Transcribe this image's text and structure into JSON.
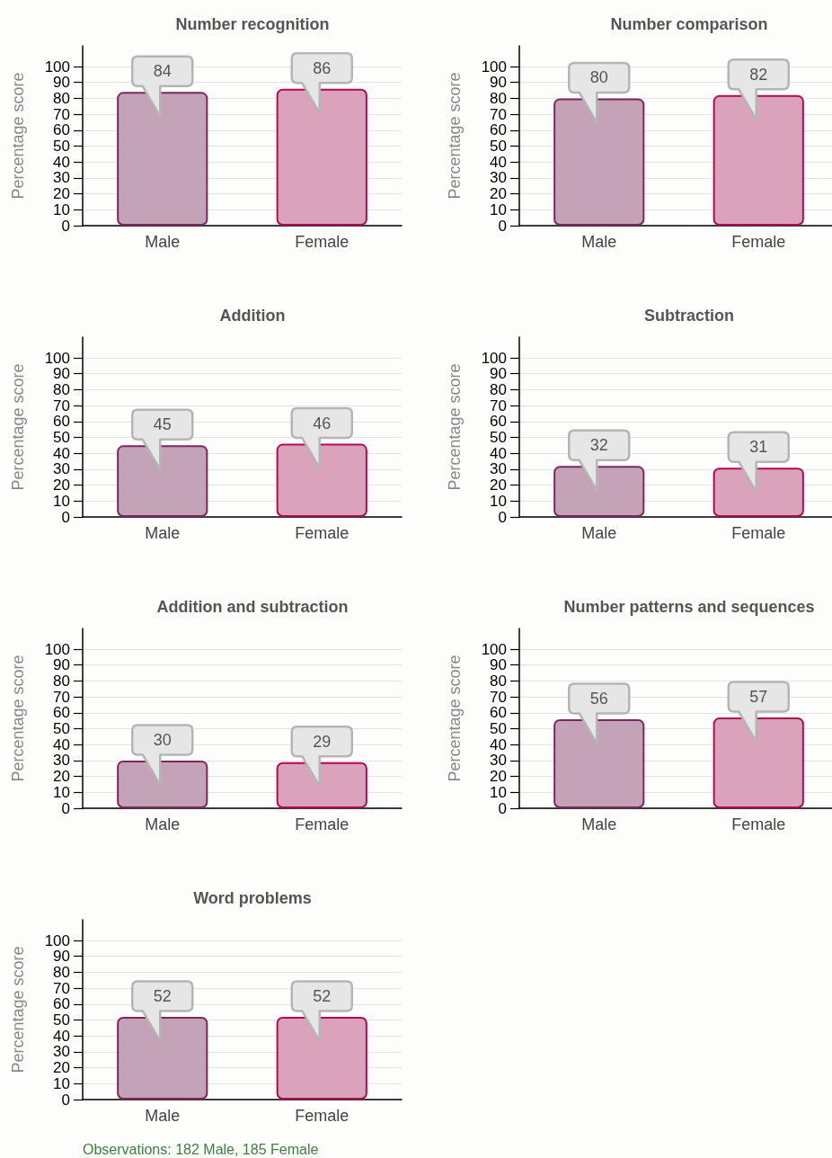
{
  "chart_data": [
    {
      "type": "bar",
      "title": "Number recognition",
      "ylabel": "Percentage score",
      "categories": [
        "Male",
        "Female"
      ],
      "values": [
        84,
        86
      ],
      "colors": [
        "#c4a2b8",
        "#dba3bb"
      ],
      "ylim": [
        0,
        113
      ],
      "yticks": [
        0,
        10,
        20,
        30,
        40,
        50,
        60,
        70,
        80,
        90,
        100
      ],
      "grid": "y",
      "data_labels": true
    },
    {
      "type": "bar",
      "title": "Number comparison",
      "ylabel": "Percentage score",
      "categories": [
        "Male",
        "Female"
      ],
      "values": [
        80,
        82
      ],
      "colors": [
        "#c4a2b8",
        "#dba3bb"
      ],
      "ylim": [
        0,
        113
      ],
      "yticks": [
        0,
        10,
        20,
        30,
        40,
        50,
        60,
        70,
        80,
        90,
        100
      ],
      "grid": "y",
      "data_labels": true
    },
    {
      "type": "bar",
      "title": "Addition",
      "ylabel": "Percentage score",
      "categories": [
        "Male",
        "Female"
      ],
      "values": [
        45,
        46
      ],
      "colors": [
        "#c4a2b8",
        "#dba3bb"
      ],
      "ylim": [
        0,
        113
      ],
      "yticks": [
        0,
        10,
        20,
        30,
        40,
        50,
        60,
        70,
        80,
        90,
        100
      ],
      "grid": "y",
      "data_labels": true
    },
    {
      "type": "bar",
      "title": "Subtraction",
      "ylabel": "Percentage score",
      "categories": [
        "Male",
        "Female"
      ],
      "values": [
        32,
        31
      ],
      "colors": [
        "#c4a2b8",
        "#dba3bb"
      ],
      "ylim": [
        0,
        113
      ],
      "yticks": [
        0,
        10,
        20,
        30,
        40,
        50,
        60,
        70,
        80,
        90,
        100
      ],
      "grid": "y",
      "data_labels": true
    },
    {
      "type": "bar",
      "title": "Addition and subtraction",
      "ylabel": "Percentage score",
      "categories": [
        "Male",
        "Female"
      ],
      "values": [
        30,
        29
      ],
      "colors": [
        "#c4a2b8",
        "#dba3bb"
      ],
      "ylim": [
        0,
        113
      ],
      "yticks": [
        0,
        10,
        20,
        30,
        40,
        50,
        60,
        70,
        80,
        90,
        100
      ],
      "grid": "y",
      "data_labels": true
    },
    {
      "type": "bar",
      "title": "Number patterns and sequences",
      "ylabel": "Percentage score",
      "categories": [
        "Male",
        "Female"
      ],
      "values": [
        56,
        57
      ],
      "colors": [
        "#c4a2b8",
        "#dba3bb"
      ],
      "ylim": [
        0,
        113
      ],
      "yticks": [
        0,
        10,
        20,
        30,
        40,
        50,
        60,
        70,
        80,
        90,
        100
      ],
      "grid": "y",
      "data_labels": true
    },
    {
      "type": "bar",
      "title": "Word problems",
      "ylabel": "Percentage score",
      "categories": [
        "Male",
        "Female"
      ],
      "values": [
        52,
        52
      ],
      "colors": [
        "#c4a2b8",
        "#dba3bb"
      ],
      "ylim": [
        0,
        113
      ],
      "yticks": [
        0,
        10,
        20,
        30,
        40,
        50,
        60,
        70,
        80,
        90,
        100
      ],
      "grid": "y",
      "data_labels": true,
      "annotations": [
        "Observations: 182 Male, 185 Female"
      ]
    }
  ]
}
